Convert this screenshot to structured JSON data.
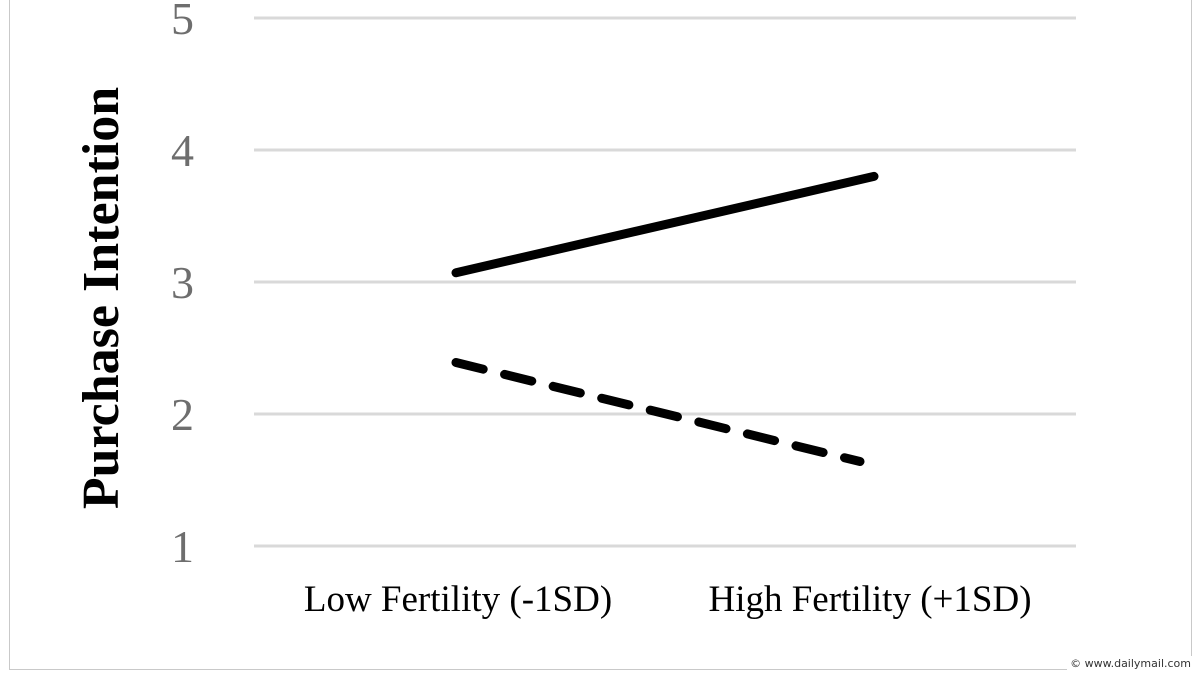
{
  "chart_data": {
    "type": "line",
    "ylabel": "Purchase Intention",
    "xlabel": "",
    "categories": [
      "Low Fertility (-1SD)",
      "High Fertility (+1SD)"
    ],
    "ylim": [
      1,
      5
    ],
    "yticks": [
      "1",
      "2",
      "3",
      "4",
      "5"
    ],
    "grid": true,
    "series": [
      {
        "style": "solid",
        "values": [
          3.07,
          3.8
        ],
        "color": "#000000"
      },
      {
        "style": "dashed",
        "values": [
          2.39,
          1.64
        ],
        "color": "#000000"
      }
    ]
  },
  "watermark": {
    "icon": "copyright-icon",
    "text": "© www.dailymail.com"
  }
}
